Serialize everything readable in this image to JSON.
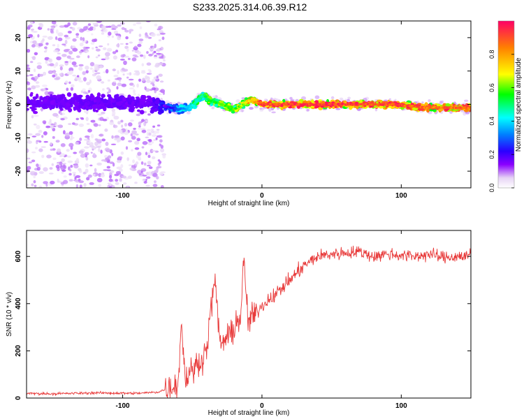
{
  "title": "S233.2025.314.06.39.R12",
  "chart_data": [
    {
      "type": "heatmap",
      "title": "S233.2025.314.06.39.R12",
      "xlabel": "Height of straight line (km)",
      "ylabel": "Frequency (Hz)",
      "xlim": [
        -169,
        150
      ],
      "ylim": [
        -25,
        25
      ],
      "xticks": [
        -100,
        0,
        100
      ],
      "yticks": [
        -20,
        -10,
        0,
        10,
        20
      ],
      "xtick_labels": [
        "-100",
        "0",
        "100"
      ],
      "ytick_labels": [
        "-20",
        "-10",
        "0",
        "10",
        "20"
      ],
      "colorbar": {
        "label": "Normalized spectral amplitude",
        "range": [
          0,
          1
        ],
        "ticks": [
          0.0,
          0.2,
          0.4,
          0.6,
          0.8
        ],
        "tick_labels": [
          "0.0",
          "0.2",
          "0.4",
          "0.6",
          "0.8"
        ]
      },
      "ridge": {
        "x": [
          -169,
          -140,
          -110,
          -80,
          -70,
          -60,
          -50,
          -42,
          -38,
          -30,
          -20,
          -15,
          -10,
          -5,
          0,
          20,
          40,
          60,
          80,
          100,
          120,
          150
        ],
        "frequency_hz": [
          0.5,
          0.3,
          0.6,
          0.2,
          -0.5,
          -1.5,
          -0.5,
          3,
          1.2,
          0.2,
          -1.5,
          -0.5,
          1.2,
          0.8,
          0.0,
          0.0,
          0.0,
          0.0,
          0.0,
          -0.2,
          -1.0,
          -1.0
        ],
        "normalized_amplitude": [
          0.05,
          0.05,
          0.06,
          0.05,
          0.15,
          0.3,
          0.45,
          0.5,
          0.55,
          0.6,
          0.6,
          0.65,
          0.75,
          0.8,
          0.95,
          0.97,
          0.97,
          0.97,
          0.95,
          0.95,
          0.9,
          0.92
        ]
      }
    },
    {
      "type": "line",
      "xlabel": "Height of straight line (km)",
      "ylabel": "SNR (10 * v/v)",
      "xlim": [
        -169,
        150
      ],
      "ylim": [
        0,
        710
      ],
      "xticks": [
        -100,
        0,
        100
      ],
      "yticks": [
        0,
        200,
        400,
        600
      ],
      "xtick_labels": [
        "-100",
        "0",
        "100"
      ],
      "ytick_labels": [
        "0",
        "200",
        "400",
        "600"
      ],
      "series": [
        {
          "name": "SNR",
          "color": "#e83a3a",
          "x": [
            -169,
            -150,
            -120,
            -90,
            -75,
            -70,
            -65,
            -60,
            -58,
            -55,
            -50,
            -45,
            -40,
            -34,
            -30,
            -25,
            -20,
            -15,
            -13,
            -10,
            -5,
            0,
            5,
            10,
            15,
            20,
            25,
            30,
            40,
            50,
            60,
            70,
            80,
            90,
            100,
            110,
            120,
            130,
            140,
            150
          ],
          "y": [
            20,
            18,
            22,
            20,
            25,
            35,
            50,
            60,
            330,
            80,
            120,
            150,
            200,
            505,
            230,
            250,
            300,
            350,
            595,
            320,
            360,
            390,
            420,
            440,
            470,
            500,
            530,
            560,
            600,
            610,
            615,
            620,
            600,
            610,
            605,
            600,
            610,
            595,
            600,
            605
          ]
        }
      ]
    }
  ]
}
